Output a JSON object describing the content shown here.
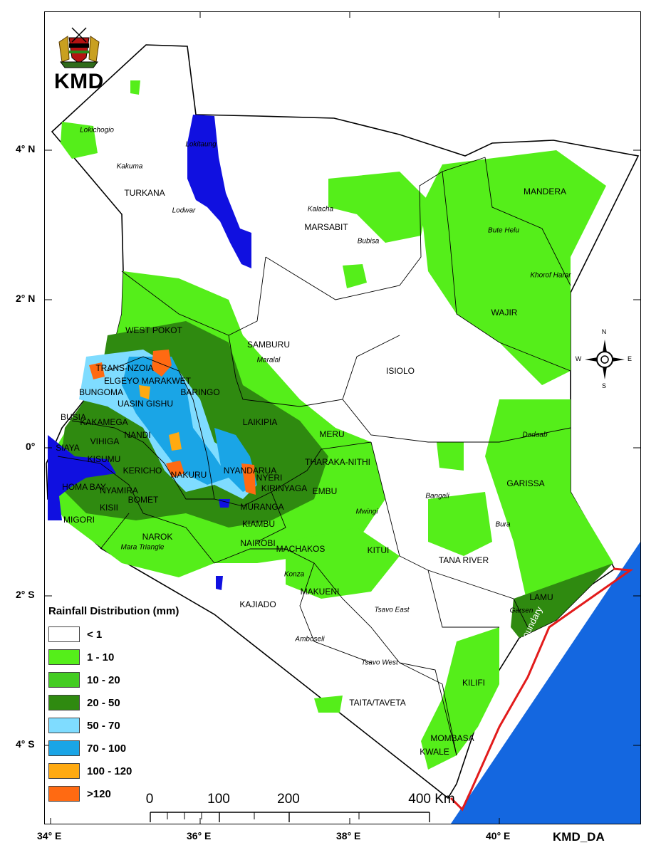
{
  "header": {
    "logo_name": "kenya-coat-of-arms",
    "title": "KMD"
  },
  "footer": {
    "code": "KMD_DA"
  },
  "axes": {
    "longitude_labels": [
      "34° E",
      "36° E",
      "38° E",
      "40° E"
    ],
    "latitude_labels": [
      "4° N",
      "2° N",
      "0°",
      "2° S",
      "4° S"
    ]
  },
  "legend": {
    "title": "Rainfall Distribution (mm)",
    "items": [
      {
        "label": "< 1",
        "color": "#ffffff"
      },
      {
        "label": "1 - 10",
        "color": "#55ee1a"
      },
      {
        "label": "10 - 20",
        "color": "#44cc22"
      },
      {
        "label": "20 - 50",
        "color": "#2f8a10"
      },
      {
        "label": "50 - 70",
        "color": "#7fdcff"
      },
      {
        "label": "70 - 100",
        "color": "#1aa5e6"
      },
      {
        "label": "100 - 120",
        "color": "#ffaa11"
      },
      {
        "label": ">120",
        "color": "#ff6a12"
      }
    ]
  },
  "scale_bar": {
    "labels": [
      "0",
      "100",
      "200",
      "400 Km"
    ]
  },
  "compass": {
    "n": "N",
    "s": "S",
    "e": "E",
    "w": "W"
  },
  "sea_label": "Territorial Boundary",
  "counties": [
    "TURKANA",
    "MARSABIT",
    "MANDERA",
    "WAJIR",
    "WEST POKOT",
    "SAMBURU",
    "TRANS-NZOIA",
    "ELGEYO MARAKWET",
    "BUNGOMA",
    "UASIN GISHU",
    "BARINGO",
    "ISIOLO",
    "BUSIA",
    "KAKAMEGA",
    "NANDI",
    "LAIKIPIA",
    "MERU",
    "VIHIGA",
    "SIAYA",
    "KISUMU",
    "KERICHO",
    "NAKURU",
    "NYANDARUA",
    "NYERI",
    "THARAKA-NITHI",
    "HOMA BAY",
    "NYAMIRA",
    "BOMET",
    "KIRINYAGA",
    "EMBU",
    "GARISSA",
    "KISII",
    "MIGORI",
    "MURANGA",
    "NAROK",
    "KIAMBU",
    "NAIROBI",
    "MACHAKOS",
    "KITUI",
    "TANA RIVER",
    "KAJIADO",
    "MAKUENI",
    "LAMU",
    "KILIFI",
    "TAITA/TAVETA",
    "MOMBASA",
    "KWALE"
  ],
  "towns": [
    "Lokichogio",
    "Kakuma",
    "Lodwar",
    "Lokitaung",
    "Kalacha",
    "Bubisa",
    "Bute Helu",
    "Khorof Harar",
    "Maralal",
    "Dadaab",
    "Bangali",
    "Mwingi",
    "Bura",
    "Mara Triangle",
    "Konza",
    "Tsavo East",
    "Garsen",
    "Amboseli",
    "Tsavo West"
  ]
}
